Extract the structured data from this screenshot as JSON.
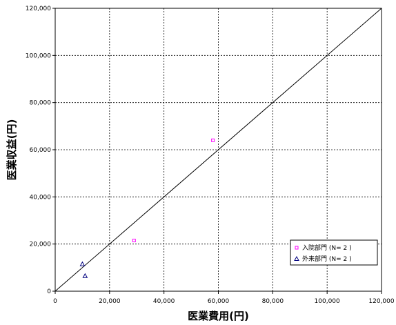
{
  "chart_data": {
    "type": "scatter",
    "xlabel": "医業費用(円)",
    "ylabel": "医業収益(円)",
    "xlim": [
      0,
      120000
    ],
    "ylim": [
      0,
      120000
    ],
    "x_ticks": [
      0,
      20000,
      40000,
      60000,
      80000,
      100000,
      120000
    ],
    "y_ticks": [
      0,
      20000,
      40000,
      60000,
      80000,
      100000,
      120000
    ],
    "x_tick_labels": [
      "0",
      "20,000",
      "40,000",
      "60,000",
      "80,000",
      "100,000",
      "120,000"
    ],
    "y_tick_labels": [
      "0",
      "20,000",
      "40,000",
      "60,000",
      "80,000",
      "100,000",
      "120,000"
    ],
    "grid": true,
    "legend_position": "bottom-right",
    "reference_line": {
      "from": [
        0,
        0
      ],
      "to": [
        120000,
        120000
      ]
    },
    "series": [
      {
        "name": "入院部門 (N= 2 )",
        "marker": "square",
        "color": "#ff00ff",
        "points": [
          {
            "x": 58000,
            "y": 64000
          },
          {
            "x": 29000,
            "y": 21500
          }
        ]
      },
      {
        "name": "外来部門 (N= 2 )",
        "marker": "triangle",
        "color": "#000080",
        "points": [
          {
            "x": 10000,
            "y": 11500
          },
          {
            "x": 11000,
            "y": 6500
          }
        ]
      }
    ]
  }
}
